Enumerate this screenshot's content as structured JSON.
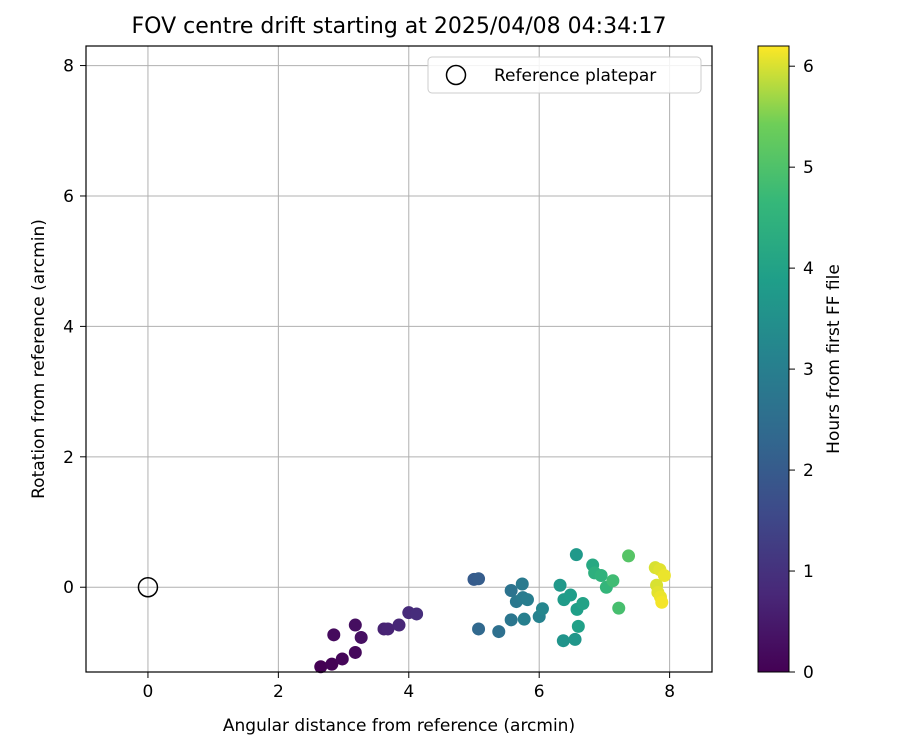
{
  "chart_data": {
    "type": "scatter",
    "title": "FOV centre drift starting at 2025/04/08 04:34:17",
    "xlabel": "Angular distance from reference (arcmin)",
    "ylabel": "Rotation from reference (arcmin)",
    "xlim": [
      -0.95,
      8.65
    ],
    "ylim": [
      -1.3,
      8.3
    ],
    "xticks": [
      0,
      2,
      4,
      6,
      8
    ],
    "yticks": [
      0,
      2,
      4,
      6,
      8
    ],
    "grid": true,
    "legend": {
      "position": "top-right",
      "entries": [
        "Reference platepar"
      ]
    },
    "reference_point": {
      "x": 0,
      "y": 0
    },
    "colorbar": {
      "label": "Hours from first FF file",
      "colormap": "viridis",
      "range": [
        0,
        6.2
      ],
      "ticks": [
        0,
        1,
        2,
        3,
        4,
        5,
        6
      ]
    },
    "points": [
      {
        "x": 2.65,
        "y": -1.22,
        "t": 0.0
      },
      {
        "x": 2.82,
        "y": -1.18,
        "t": 0.05
      },
      {
        "x": 2.98,
        "y": -1.1,
        "t": 0.1
      },
      {
        "x": 3.18,
        "y": -1.0,
        "t": 0.15
      },
      {
        "x": 2.85,
        "y": -0.73,
        "t": 0.2
      },
      {
        "x": 3.18,
        "y": -0.58,
        "t": 0.25
      },
      {
        "x": 3.27,
        "y": -0.77,
        "t": 0.3
      },
      {
        "x": 3.62,
        "y": -0.64,
        "t": 0.65
      },
      {
        "x": 3.68,
        "y": -0.64,
        "t": 0.7
      },
      {
        "x": 3.85,
        "y": -0.58,
        "t": 0.75
      },
      {
        "x": 4.0,
        "y": -0.39,
        "t": 0.85
      },
      {
        "x": 4.12,
        "y": -0.41,
        "t": 0.9
      },
      {
        "x": 5.0,
        "y": 0.12,
        "t": 2.0
      },
      {
        "x": 5.07,
        "y": 0.13,
        "t": 2.05
      },
      {
        "x": 5.07,
        "y": -0.64,
        "t": 2.35
      },
      {
        "x": 5.38,
        "y": -0.68,
        "t": 2.55
      },
      {
        "x": 5.57,
        "y": -0.05,
        "t": 2.65
      },
      {
        "x": 5.57,
        "y": -0.5,
        "t": 2.75
      },
      {
        "x": 5.65,
        "y": -0.22,
        "t": 2.8
      },
      {
        "x": 5.74,
        "y": 0.05,
        "t": 2.85
      },
      {
        "x": 5.75,
        "y": -0.16,
        "t": 2.9
      },
      {
        "x": 5.82,
        "y": -0.19,
        "t": 2.95
      },
      {
        "x": 5.77,
        "y": -0.49,
        "t": 3.0
      },
      {
        "x": 6.0,
        "y": -0.45,
        "t": 3.1
      },
      {
        "x": 6.05,
        "y": -0.33,
        "t": 3.2
      },
      {
        "x": 6.32,
        "y": 0.03,
        "t": 3.7
      },
      {
        "x": 6.38,
        "y": -0.19,
        "t": 3.8
      },
      {
        "x": 6.48,
        "y": -0.12,
        "t": 3.85
      },
      {
        "x": 6.37,
        "y": -0.82,
        "t": 3.6
      },
      {
        "x": 6.55,
        "y": -0.8,
        "t": 3.65
      },
      {
        "x": 6.57,
        "y": 0.5,
        "t": 3.75
      },
      {
        "x": 6.58,
        "y": -0.34,
        "t": 3.9
      },
      {
        "x": 6.6,
        "y": -0.6,
        "t": 3.95
      },
      {
        "x": 6.67,
        "y": -0.25,
        "t": 4.0
      },
      {
        "x": 6.82,
        "y": 0.34,
        "t": 4.2
      },
      {
        "x": 6.85,
        "y": 0.22,
        "t": 4.4
      },
      {
        "x": 6.95,
        "y": 0.18,
        "t": 4.5
      },
      {
        "x": 7.03,
        "y": 0.0,
        "t": 4.6
      },
      {
        "x": 7.13,
        "y": 0.1,
        "t": 4.8
      },
      {
        "x": 7.22,
        "y": -0.32,
        "t": 4.9
      },
      {
        "x": 7.37,
        "y": 0.48,
        "t": 5.1
      },
      {
        "x": 7.78,
        "y": 0.3,
        "t": 6.0
      },
      {
        "x": 7.85,
        "y": 0.27,
        "t": 6.05
      },
      {
        "x": 7.92,
        "y": 0.18,
        "t": 6.1
      },
      {
        "x": 7.8,
        "y": 0.03,
        "t": 6.0
      },
      {
        "x": 7.82,
        "y": -0.08,
        "t": 6.05
      },
      {
        "x": 7.86,
        "y": -0.15,
        "t": 6.1
      },
      {
        "x": 7.88,
        "y": -0.23,
        "t": 6.15
      }
    ]
  }
}
